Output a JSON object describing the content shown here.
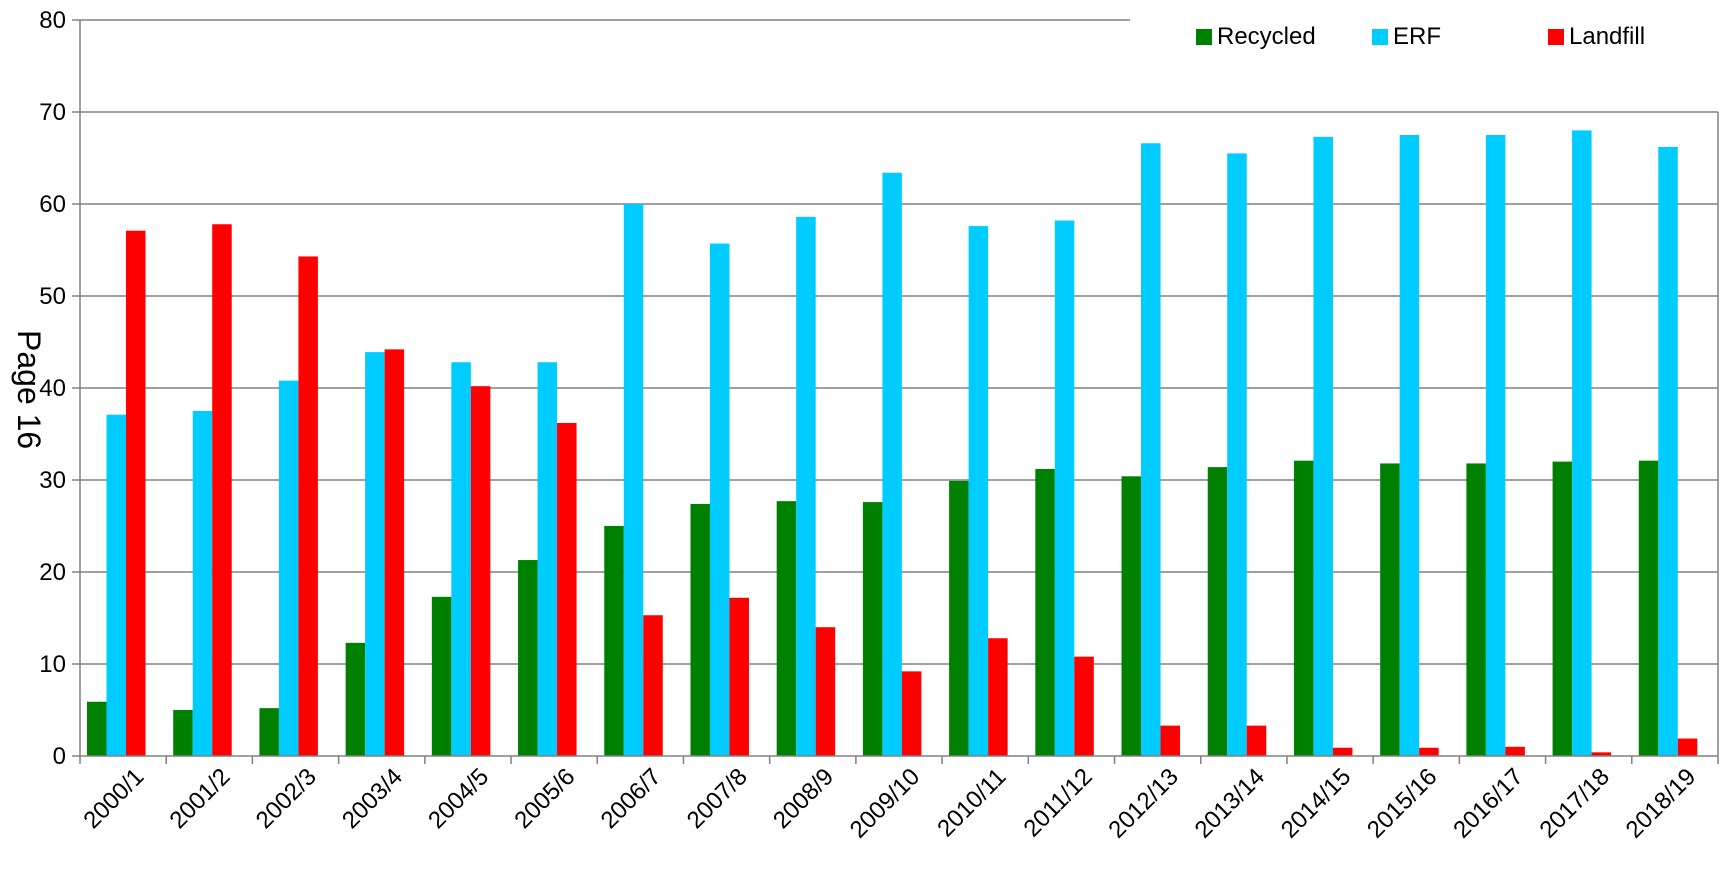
{
  "chart_data": {
    "type": "bar",
    "categories": [
      "2000/1",
      "2001/2",
      "2002/3",
      "2003/4",
      "2004/5",
      "2005/6",
      "2006/7",
      "2007/8",
      "2008/9",
      "2009/10",
      "2010/11",
      "2011/12",
      "2012/13",
      "2013/14",
      "2014/15",
      "2015/16",
      "2016/17",
      "2017/18",
      "2018/19"
    ],
    "series": [
      {
        "name": "Recycled",
        "color": "#008000",
        "values": [
          5.9,
          5.0,
          5.2,
          12.3,
          17.3,
          21.3,
          25.0,
          27.4,
          27.7,
          27.6,
          29.9,
          31.2,
          30.4,
          31.4,
          32.1,
          31.8,
          31.8,
          32.0,
          32.1
        ]
      },
      {
        "name": "ERF",
        "color": "#00CCFF",
        "values": [
          37.1,
          37.5,
          40.8,
          43.9,
          42.8,
          42.8,
          60.0,
          55.7,
          58.6,
          63.4,
          57.6,
          58.2,
          66.6,
          65.5,
          67.3,
          67.5,
          67.5,
          68.0,
          66.2
        ]
      },
      {
        "name": "Landfill",
        "color": "#FF0000",
        "values": [
          57.1,
          57.8,
          54.3,
          44.2,
          40.2,
          36.2,
          15.3,
          17.2,
          14.0,
          9.2,
          12.8,
          10.8,
          3.3,
          3.3,
          0.9,
          0.9,
          1.0,
          0.4,
          1.9
        ]
      }
    ],
    "title": "",
    "xlabel": "",
    "ylabel": "",
    "ylim": [
      0,
      80
    ],
    "yticks": [
      0,
      10,
      20,
      30,
      40,
      50,
      60,
      70,
      80
    ],
    "grid": true,
    "legend_position": "top-right"
  },
  "page_stamp": "Page 16"
}
